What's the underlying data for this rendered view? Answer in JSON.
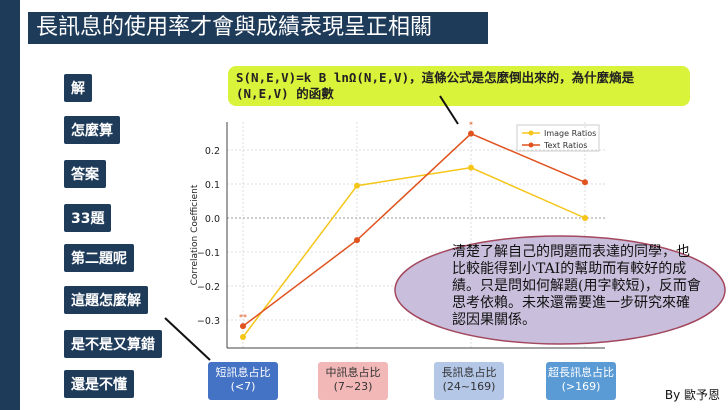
{
  "title": "長訊息的使用率才會與成績表現呈正相關",
  "left_buttons": [
    "解",
    "怎麼算",
    "答案",
    "33題",
    "第二題呢",
    "這題怎麼解",
    "是不是又算錯",
    "還是不懂"
  ],
  "callout": "S(N,E,V)=k B lnΩ(N,E,V)，這條公式是怎麼倒出來的，為什麼熵是(N,E,V) 的函數",
  "categories": [
    {
      "name": "短訊息占比",
      "range": "(<7)",
      "color": "#4472c4",
      "text": "#fff"
    },
    {
      "name": "中訊息占比",
      "range": "(7~23)",
      "color": "#f2b8b8",
      "text": "#333"
    },
    {
      "name": "長訊息占比",
      "range": "(24~169)",
      "color": "#b4c7e7",
      "text": "#333"
    },
    {
      "name": "超長訊息占比",
      "range": "(>169)",
      "color": "#5b9bd5",
      "text": "#fff"
    }
  ],
  "annotation": "清楚了解自己的問題而表達的同學，也比較能得到小TAI的幫助而有較好的成績。只是問如何解題(用字較短)，反而會思考依賴。未來還需要進一步研究來確認因果關係。",
  "byline": "By 歐予恩",
  "chart_data": {
    "type": "line",
    "ylabel": "Correlation Coefficient",
    "ylim": [
      -0.37,
      0.28
    ],
    "yticks": [
      "0.2",
      "0.1",
      "0.0",
      "−0.1",
      "−0.2",
      "−0.3"
    ],
    "ytick_values": [
      0.2,
      0.1,
      0.0,
      -0.1,
      -0.2,
      -0.3
    ],
    "grid": true,
    "legend": "top-right",
    "series": [
      {
        "name": "Image Ratios",
        "color": "#f5c518",
        "values": [
          -0.35,
          0.095,
          0.148,
          0.0
        ]
      },
      {
        "name": "Text Ratios",
        "color": "#e0531f",
        "values": [
          -0.318,
          -0.065,
          0.248,
          0.105
        ]
      }
    ],
    "significance": [
      {
        "index": 0,
        "mark": "**"
      },
      {
        "index": 2,
        "mark": "*"
      }
    ]
  }
}
